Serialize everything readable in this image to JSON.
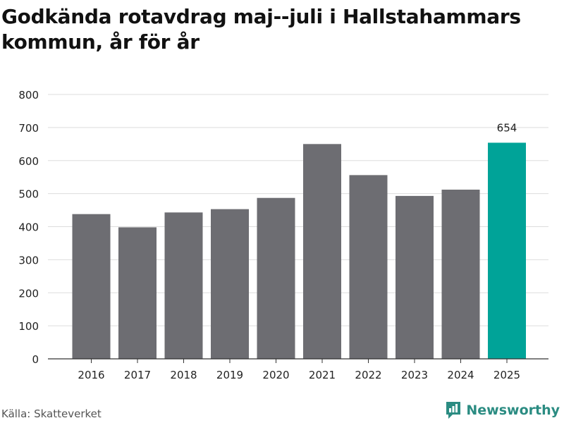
{
  "title": "Godkända rotavdrag maj--juli i Hallstahammars kommun, år för år",
  "source": "Källa: Skatteverket",
  "brand": {
    "name": "Newsworthy",
    "icon": "newsworthy-logo-icon"
  },
  "colors": {
    "bar": "#6d6d72",
    "highlight": "#00a398",
    "grid": "#dddddd",
    "axis": "#333333",
    "brand": "#2b8c82"
  },
  "chart_data": {
    "type": "bar",
    "title": "Godkända rotavdrag maj--juli i Hallstahammars kommun, år för år",
    "categories": [
      "2016",
      "2017",
      "2018",
      "2019",
      "2020",
      "2021",
      "2022",
      "2023",
      "2024",
      "2025"
    ],
    "values": [
      438,
      398,
      443,
      453,
      487,
      650,
      556,
      493,
      512,
      654
    ],
    "highlight_index": 9,
    "data_labels": [
      {
        "index": 9,
        "text": "654"
      }
    ],
    "ylim": [
      0,
      800
    ],
    "yticks": [
      0,
      100,
      200,
      300,
      400,
      500,
      600,
      700,
      800
    ],
    "xlabel": "",
    "ylabel": "",
    "grid": true,
    "legend": "none"
  }
}
